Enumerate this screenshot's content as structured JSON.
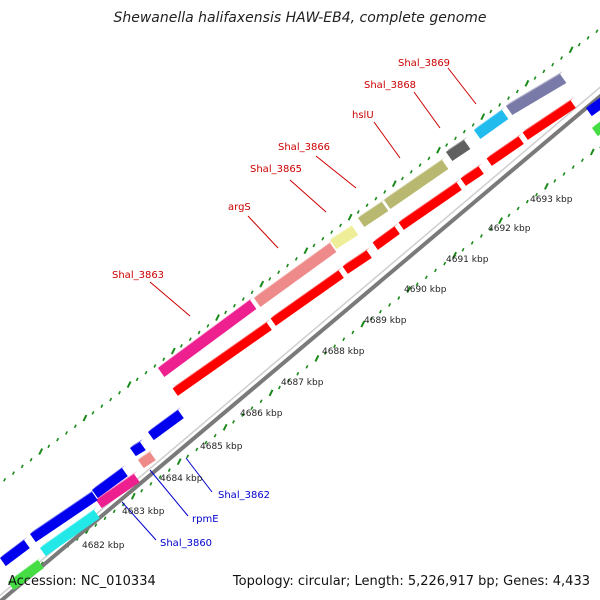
{
  "header": {
    "title": "Shewanella halifaxensis HAW-EB4, complete genome"
  },
  "footer": {
    "accession": "Accession: NC_010334",
    "summary": "Topology: circular; Length: 5,226,917 bp; Genes: 4,433"
  },
  "colors": {
    "backbone": "#7a7a7a",
    "tick_green": "#1a8a1a",
    "cds_red": "#ff0000",
    "label_red": "#cc0000",
    "label_blue": "#0000cc",
    "blue": "#0000ee",
    "cyan": "#22e8e8",
    "magenta": "#ee1f8f",
    "salmon": "#ef8a8a",
    "pale_yellow": "#eeee99",
    "olive": "#b8b870",
    "dark_gray": "#606060",
    "sky": "#22bbee",
    "slate": "#7a7aa8",
    "green": "#44dd44"
  },
  "scale": {
    "ticks": [
      {
        "label": "4682 kbp"
      },
      {
        "label": "4683 kbp"
      },
      {
        "label": "4684 kbp"
      },
      {
        "label": "4685 kbp"
      },
      {
        "label": "4686 kbp"
      },
      {
        "label": "4687 kbp"
      },
      {
        "label": "4688 kbp"
      },
      {
        "label": "4689 kbp"
      },
      {
        "label": "4690 kbp"
      },
      {
        "label": "4691 kbp"
      },
      {
        "label": "4692 kbp"
      },
      {
        "label": "4693 kbp"
      }
    ]
  },
  "genes_top": [
    {
      "name": "Shal_3863",
      "color": "magenta"
    },
    {
      "name": "argS",
      "color": "salmon"
    },
    {
      "name": "Shal_3865",
      "color": "pale_yellow"
    },
    {
      "name": "Shal_3866",
      "color": "olive"
    },
    {
      "name": "hslU",
      "color": "olive"
    },
    {
      "name": "Shal_3868",
      "color": "dark_gray"
    },
    {
      "name": "Shal_3869",
      "color": "sky"
    }
  ],
  "genes_bottom": [
    {
      "name": "Shal_3862",
      "color": "blue"
    },
    {
      "name": "rpmE",
      "color": "salmon"
    },
    {
      "name": "Shal_3860",
      "color": "cyan"
    }
  ]
}
